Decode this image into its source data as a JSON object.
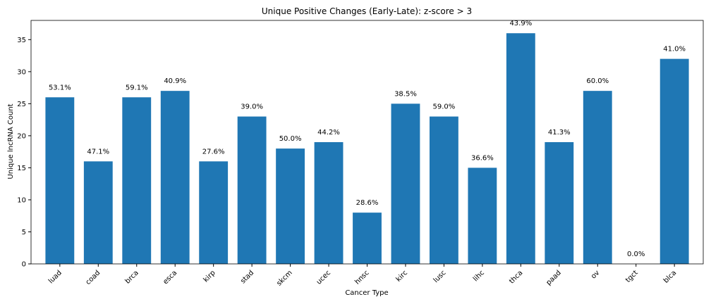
{
  "chart_data": {
    "type": "bar",
    "title": "Unique Positive Changes (Early-Late): z-score > 3",
    "xlabel": "Cancer Type",
    "ylabel": "Unique lncRNA Count",
    "categories": [
      "luad",
      "coad",
      "brca",
      "esca",
      "kirp",
      "stad",
      "skcm",
      "ucec",
      "hnsc",
      "kirc",
      "lusc",
      "lihc",
      "thca",
      "paad",
      "ov",
      "tgct",
      "blca"
    ],
    "values": [
      26,
      16,
      26,
      27,
      16,
      23,
      18,
      19,
      8,
      25,
      23,
      15,
      36,
      19,
      27,
      0,
      32
    ],
    "data_labels": [
      "53.1%",
      "47.1%",
      "59.1%",
      "40.9%",
      "27.6%",
      "39.0%",
      "50.0%",
      "44.2%",
      "28.6%",
      "38.5%",
      "59.0%",
      "36.6%",
      "43.9%",
      "41.3%",
      "60.0%",
      "0.0%",
      "41.0%"
    ],
    "ylim": [
      0,
      38
    ],
    "yticks": [
      0,
      5,
      10,
      15,
      20,
      25,
      30,
      35
    ],
    "grid": false,
    "bar_color": "#1f77b4"
  }
}
